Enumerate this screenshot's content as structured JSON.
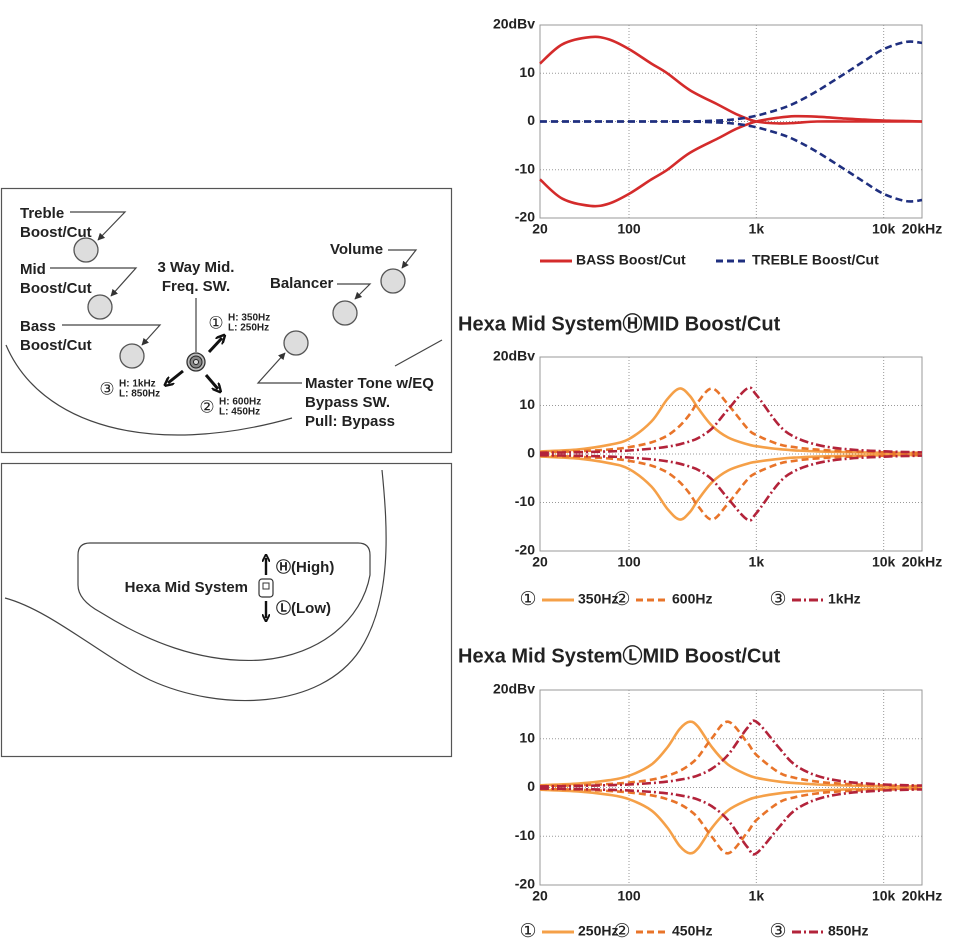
{
  "chart_data": [
    {
      "type": "line",
      "xscale": "log",
      "grid": true,
      "x": [
        20,
        30,
        50,
        70,
        100,
        150,
        200,
        300,
        500,
        700,
        1000,
        1500,
        2000,
        3000,
        5000,
        7000,
        10000,
        15000,
        20000
      ],
      "xlim": [
        20,
        20000
      ],
      "xticks": [
        20,
        100,
        {
          "value": 1000,
          "label": "1k"
        },
        {
          "value": 10000,
          "label": "10k"
        },
        {
          "value": 20000,
          "label": "20kHz"
        }
      ],
      "ylim": [
        -20,
        20
      ],
      "yticks": [
        {
          "value": 20,
          "label": "20dBv"
        },
        10,
        0,
        -10,
        -20
      ],
      "series": [
        {
          "name": "BASS Boost/Cut",
          "color": "#d42b2b",
          "dash": "solid",
          "values": [
            12,
            16,
            17.5,
            17,
            15,
            12,
            10,
            6.5,
            3.5,
            1.5,
            0,
            -0.4,
            -0.3,
            0,
            0,
            0,
            0,
            0,
            0
          ],
          "cut_values": [
            -12,
            -16,
            -17.5,
            -17,
            -15,
            -12,
            -10,
            -6.5,
            -3.5,
            -1.5,
            0,
            0.8,
            1.1,
            1,
            0.6,
            0.4,
            0.2,
            0.1,
            0
          ]
        },
        {
          "name": "TREBLE Boost/Cut",
          "color": "#1f2f7f",
          "dash": "dashed",
          "values": [
            0,
            0,
            0,
            0,
            0,
            0,
            0,
            0,
            0.2,
            0.5,
            1.2,
            2.5,
            3.8,
            6.3,
            10,
            12.5,
            15,
            16.5,
            16.3
          ],
          "cut_values": [
            0,
            0,
            0,
            0,
            0,
            0,
            0,
            0,
            -0.2,
            -0.5,
            -1.2,
            -2.5,
            -3.8,
            -6.3,
            -10,
            -12.5,
            -15,
            -16.5,
            -16.3
          ]
        }
      ]
    },
    {
      "type": "line",
      "xscale": "log",
      "grid": true,
      "title": "Hexa Mid SystemⒽMID Boost/Cut",
      "x": [
        20,
        40,
        70,
        100,
        150,
        200,
        250,
        300,
        350,
        450,
        600,
        850,
        1000,
        1500,
        2000,
        3000,
        5000,
        10000,
        20000
      ],
      "xlim": [
        20,
        20000
      ],
      "xticks": [
        20,
        100,
        {
          "value": 1000,
          "label": "1k"
        },
        {
          "value": 10000,
          "label": "10k"
        },
        {
          "value": 20000,
          "label": "20kHz"
        }
      ],
      "ylim": [
        -20,
        20
      ],
      "yticks": [
        {
          "value": 20,
          "label": "20dBv"
        },
        10,
        0,
        -10,
        -20
      ],
      "series": [
        {
          "name": "350Hz",
          "badge": "①",
          "color": "#f5a048",
          "dash": "solid",
          "values": [
            0.52,
            0.95,
            1.9,
            3.1,
            6.7,
            11.3,
            13.5,
            12.0,
            9.4,
            5.8,
            3.4,
            2.0,
            1.6,
            1.0,
            0.75,
            0.54,
            0.38,
            0.25,
            0.18
          ],
          "cut_values": [
            -0.52,
            -0.95,
            -1.9,
            -3.1,
            -6.7,
            -11.3,
            -13.5,
            -12.0,
            -9.4,
            -5.8,
            -3.4,
            -2.0,
            -1.6,
            -1.0,
            -0.75,
            -0.54,
            -0.38,
            -0.25,
            -0.18
          ]
        },
        {
          "name": "600Hz",
          "badge": "②",
          "color": "#e8742a",
          "dash": "dashed",
          "values": [
            0.35,
            0.57,
            0.93,
            1.4,
            2.4,
            3.8,
            5.8,
            8.2,
            10.8,
            13.5,
            10.2,
            5.3,
            3.9,
            2.0,
            1.4,
            0.9,
            0.58,
            0.35,
            0.24
          ],
          "cut_values": [
            -0.35,
            -0.57,
            -0.93,
            -1.4,
            -2.4,
            -3.8,
            -5.8,
            -8.2,
            -10.8,
            -13.5,
            -10.2,
            -5.3,
            -3.9,
            -2.0,
            -1.4,
            -0.9,
            -0.58,
            -0.35,
            -0.24
          ]
        },
        {
          "name": "1kHz",
          "badge": "③",
          "color": "#b3233a",
          "dash": "dashdot",
          "values": [
            0.24,
            0.36,
            0.53,
            0.72,
            1.1,
            1.5,
            2.0,
            2.6,
            3.3,
            5.3,
            9.2,
            13.5,
            12.2,
            6.0,
            3.5,
            1.9,
            1.0,
            0.55,
            0.34
          ],
          "cut_values": [
            -0.24,
            -0.36,
            -0.53,
            -0.72,
            -1.1,
            -1.5,
            -2.0,
            -2.6,
            -3.3,
            -5.3,
            -9.2,
            -13.5,
            -12.2,
            -6.0,
            -3.5,
            -1.9,
            -1.0,
            -0.55,
            -0.34
          ]
        }
      ]
    },
    {
      "type": "line",
      "xscale": "log",
      "grid": true,
      "title": "Hexa Mid SystemⓁMID Boost/Cut",
      "x": [
        20,
        40,
        70,
        100,
        150,
        200,
        250,
        300,
        350,
        450,
        600,
        850,
        1000,
        1500,
        2000,
        3000,
        5000,
        10000,
        20000
      ],
      "xlim": [
        20,
        20000
      ],
      "xticks": [
        20,
        100,
        {
          "value": 1000,
          "label": "1k"
        },
        {
          "value": 10000,
          "label": "10k"
        },
        {
          "value": 20000,
          "label": "20kHz"
        }
      ],
      "ylim": [
        -20,
        20
      ],
      "yticks": [
        {
          "value": 20,
          "label": "20dBv"
        },
        10,
        0,
        -10,
        -20
      ],
      "series": [
        {
          "name": "250Hz",
          "badge": "①",
          "color": "#f5a048",
          "dash": "solid",
          "values": [
            0.46,
            0.8,
            1.5,
            2.4,
            4.7,
            8.2,
            12.0,
            13.5,
            12.4,
            8.2,
            4.7,
            2.6,
            2.0,
            1.2,
            0.9,
            0.62,
            0.42,
            0.28,
            0.19
          ],
          "cut_values": [
            -0.46,
            -0.8,
            -1.5,
            -2.4,
            -4.7,
            -8.2,
            -12.0,
            -13.5,
            -12.4,
            -8.2,
            -4.7,
            -2.6,
            -2.0,
            -1.2,
            -0.9,
            -0.62,
            -0.42,
            -0.28,
            -0.19
          ]
        },
        {
          "name": "450Hz",
          "badge": "②",
          "color": "#e8742a",
          "dash": "dashed",
          "values": [
            0.29,
            0.46,
            0.71,
            1.0,
            1.6,
            2.4,
            3.4,
            4.7,
            6.3,
            10.2,
            13.5,
            9.2,
            6.7,
            3.1,
            2.0,
            1.2,
            0.73,
            0.42,
            0.28
          ],
          "cut_values": [
            -0.29,
            -0.46,
            -0.71,
            -1.0,
            -1.6,
            -2.4,
            -3.4,
            -4.7,
            -6.3,
            -10.2,
            -13.5,
            -9.2,
            -6.7,
            -3.1,
            -2.0,
            -1.2,
            -0.73,
            -0.42,
            -0.28
          ]
        },
        {
          "name": "850Hz",
          "badge": "③",
          "color": "#b3233a",
          "dash": "dashdot",
          "values": [
            0.22,
            0.33,
            0.47,
            0.62,
            0.9,
            1.2,
            1.6,
            2.0,
            2.5,
            3.9,
            6.7,
            12.2,
            13.5,
            8.2,
            4.7,
            2.4,
            1.2,
            0.62,
            0.38
          ],
          "cut_values": [
            -0.22,
            -0.33,
            -0.47,
            -0.62,
            -0.9,
            -1.2,
            -1.6,
            -2.0,
            -2.5,
            -3.9,
            -6.7,
            -12.2,
            -13.5,
            -8.2,
            -4.7,
            -2.4,
            -1.2,
            -0.62,
            -0.38
          ]
        }
      ]
    }
  ],
  "diagram": {
    "controls": [
      {
        "lines": [
          "Treble",
          "Boost/Cut"
        ]
      },
      {
        "lines": [
          "Mid",
          "Boost/Cut"
        ]
      },
      {
        "lines": [
          "Bass",
          "Boost/Cut"
        ]
      },
      {
        "lines": [
          "3 Way Mid.",
          "Freq. SW."
        ]
      },
      {
        "lines": [
          "Volume"
        ]
      },
      {
        "lines": [
          "Balancer"
        ]
      },
      {
        "lines": [
          "Master Tone w/EQ",
          "Bypass SW.",
          "Pull: Bypass"
        ]
      }
    ],
    "positions": [
      {
        "badge": "①",
        "lines": [
          "H: 350Hz",
          "L: 250Hz"
        ]
      },
      {
        "badge": "②",
        "lines": [
          "H: 600Hz",
          "L: 450Hz"
        ]
      },
      {
        "badge": "③",
        "lines": [
          "H: 1kHz",
          "L: 850Hz"
        ]
      }
    ],
    "hexa": {
      "label": "Hexa Mid System",
      "high": "Ⓗ(High)",
      "low": "Ⓛ(Low)"
    }
  }
}
